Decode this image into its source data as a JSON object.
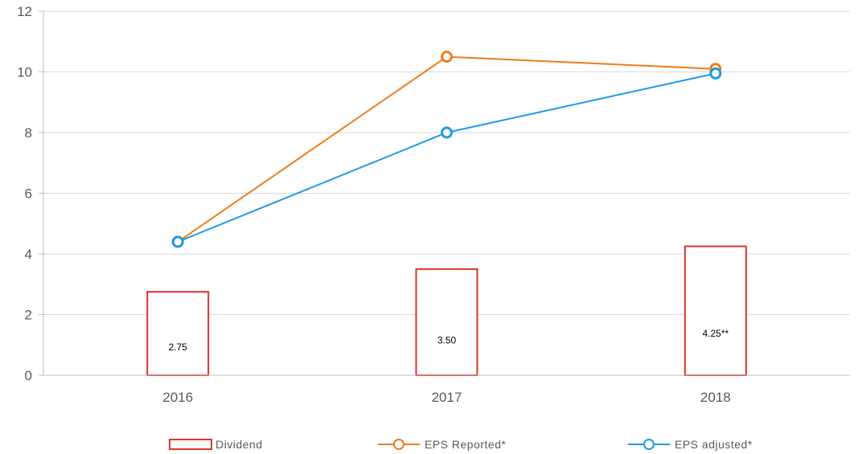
{
  "chart_data": {
    "type": "bar",
    "categories": [
      "2016",
      "2017",
      "2018"
    ],
    "ylim": [
      0,
      12
    ],
    "yticks": [
      0,
      2,
      4,
      6,
      8,
      10,
      12
    ],
    "grid": true,
    "legend_position": "bottom",
    "bar_series": {
      "name": "Dividend",
      "values": [
        2.75,
        3.5,
        4.25
      ],
      "data_labels": [
        "2.75",
        "3.50",
        "4.25**"
      ],
      "color": "#d9352b"
    },
    "line_series": [
      {
        "name": "EPS Reported*",
        "values": [
          4.4,
          10.5,
          10.1
        ],
        "color": "#f07c1a"
      },
      {
        "name": "EPS adjusted*",
        "values": [
          4.4,
          8.0,
          9.95
        ],
        "color": "#1f9be3"
      }
    ]
  }
}
